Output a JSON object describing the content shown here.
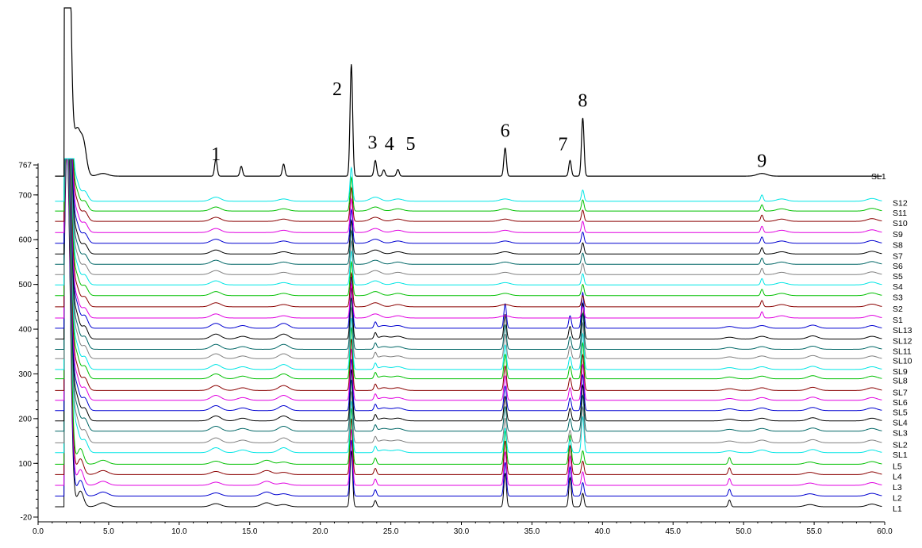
{
  "chart_data": {
    "type": "line",
    "title": "",
    "xlabel": "",
    "ylabel": "",
    "xlim": [
      0,
      60
    ],
    "ylim": [
      -20,
      767
    ],
    "x_ticks": [
      {
        "value": 0,
        "label": "0.0"
      },
      {
        "value": 5,
        "label": "5.0"
      },
      {
        "value": 10,
        "label": "10.0"
      },
      {
        "value": 15,
        "label": "15.0"
      },
      {
        "value": 20,
        "label": "20.0"
      },
      {
        "value": 25,
        "label": "25.0"
      },
      {
        "value": 30,
        "label": "30.0"
      },
      {
        "value": 35,
        "label": "35.0"
      },
      {
        "value": 40,
        "label": "40.0"
      },
      {
        "value": 45,
        "label": "45.0"
      },
      {
        "value": 50,
        "label": "50.0"
      },
      {
        "value": 55,
        "label": "55.0"
      },
      {
        "value": 60,
        "label": "60.0"
      }
    ],
    "y_ticks": [
      {
        "value": -20,
        "label": "-20"
      },
      {
        "value": 100,
        "label": "100"
      },
      {
        "value": 200,
        "label": "200"
      },
      {
        "value": 300,
        "label": "300"
      },
      {
        "value": 400,
        "label": "400"
      },
      {
        "value": 500,
        "label": "500"
      },
      {
        "value": 600,
        "label": "600"
      },
      {
        "value": 700,
        "label": "700"
      },
      {
        "value": 767,
        "label": "767"
      }
    ],
    "reference": {
      "name": "SL1",
      "color": "#000000",
      "baseline": 742,
      "peaks": [
        {
          "x": 1.95,
          "h": 620
        },
        {
          "x": 2.05,
          "h": 560
        },
        {
          "x": 2.75,
          "h": 95
        },
        {
          "x": 3.2,
          "h": 75
        },
        {
          "x": 4.6,
          "h": 6
        },
        {
          "x": 12.6,
          "h": 38
        },
        {
          "x": 14.4,
          "h": 22
        },
        {
          "x": 17.4,
          "h": 27
        },
        {
          "x": 22.2,
          "h": 250
        },
        {
          "x": 23.9,
          "h": 35
        },
        {
          "x": 24.5,
          "h": 14
        },
        {
          "x": 25.5,
          "h": 15
        },
        {
          "x": 33.1,
          "h": 63
        },
        {
          "x": 37.7,
          "h": 35
        },
        {
          "x": 38.6,
          "h": 130
        },
        {
          "x": 51.3,
          "h": 6
        }
      ]
    },
    "peak_labels": [
      {
        "label": "1",
        "x": 12.6,
        "y": 778
      },
      {
        "label": "2",
        "x": 21.2,
        "y": 923
      },
      {
        "label": "3",
        "x": 23.7,
        "y": 803
      },
      {
        "label": "4",
        "x": 24.9,
        "y": 801
      },
      {
        "label": "5",
        "x": 26.4,
        "y": 801
      },
      {
        "label": "6",
        "x": 33.1,
        "y": 830
      },
      {
        "label": "7",
        "x": 37.2,
        "y": 800
      },
      {
        "label": "8",
        "x": 38.6,
        "y": 897
      },
      {
        "label": "9",
        "x": 51.3,
        "y": 763
      }
    ],
    "series": [
      {
        "name": "S12",
        "color": "#00e5e5",
        "baseline": 686,
        "group": "S"
      },
      {
        "name": "S11",
        "color": "#00c000",
        "baseline": 664,
        "group": "S"
      },
      {
        "name": "S10",
        "color": "#8b0000",
        "baseline": 641,
        "group": "S"
      },
      {
        "name": "S9",
        "color": "#e000e0",
        "baseline": 616,
        "group": "S"
      },
      {
        "name": "S8",
        "color": "#0000d0",
        "baseline": 592,
        "group": "S"
      },
      {
        "name": "S7",
        "color": "#000000",
        "baseline": 568,
        "group": "S"
      },
      {
        "name": "S6",
        "color": "#006666",
        "baseline": 545,
        "group": "S"
      },
      {
        "name": "S5",
        "color": "#808080",
        "baseline": 522,
        "group": "S"
      },
      {
        "name": "S4",
        "color": "#00e5e5",
        "baseline": 499,
        "group": "S"
      },
      {
        "name": "S3",
        "color": "#00c000",
        "baseline": 475,
        "group": "S"
      },
      {
        "name": "S2",
        "color": "#8b0000",
        "baseline": 450,
        "group": "S"
      },
      {
        "name": "S1",
        "color": "#e000e0",
        "baseline": 425,
        "group": "S"
      },
      {
        "name": "SL13",
        "color": "#0000d0",
        "baseline": 402,
        "group": "SL"
      },
      {
        "name": "SL12",
        "color": "#000000",
        "baseline": 378,
        "group": "SL"
      },
      {
        "name": "SL11",
        "color": "#006666",
        "baseline": 355,
        "group": "SL"
      },
      {
        "name": "SL10",
        "color": "#808080",
        "baseline": 334,
        "group": "SL"
      },
      {
        "name": "SL9",
        "color": "#00e5e5",
        "baseline": 310,
        "group": "SL"
      },
      {
        "name": "SL8",
        "color": "#00c000",
        "baseline": 289,
        "group": "SL"
      },
      {
        "name": "SL7",
        "color": "#8b0000",
        "baseline": 263,
        "group": "SL"
      },
      {
        "name": "SL6",
        "color": "#e000e0",
        "baseline": 241,
        "group": "SL"
      },
      {
        "name": "SL5",
        "color": "#0000d0",
        "baseline": 218,
        "group": "SL"
      },
      {
        "name": "SL4",
        "color": "#000000",
        "baseline": 195,
        "group": "SL"
      },
      {
        "name": "SL3",
        "color": "#006666",
        "baseline": 172,
        "group": "SL"
      },
      {
        "name": "SL2",
        "color": "#808080",
        "baseline": 146,
        "group": "SL"
      },
      {
        "name": "SL1",
        "color": "#00e5e5",
        "baseline": 124,
        "group": "SL"
      },
      {
        "name": "L5",
        "color": "#00c000",
        "baseline": 98,
        "group": "L"
      },
      {
        "name": "L4",
        "color": "#8b0000",
        "baseline": 75,
        "group": "L"
      },
      {
        "name": "L3",
        "color": "#e000e0",
        "baseline": 51,
        "group": "L"
      },
      {
        "name": "L2",
        "color": "#0000d0",
        "baseline": 27,
        "group": "L"
      },
      {
        "name": "L1",
        "color": "#000000",
        "baseline": 3,
        "group": "L"
      }
    ],
    "profiles": {
      "S": [
        {
          "x": 2.7,
          "h": 45
        },
        {
          "x": 3.3,
          "h": 22
        },
        {
          "x": 12.6,
          "h": 9
        },
        {
          "x": 17.4,
          "h": 5
        },
        {
          "x": 22.2,
          "h": 75
        },
        {
          "x": 23.9,
          "h": 9
        },
        {
          "x": 25.5,
          "h": 5
        },
        {
          "x": 33.1,
          "h": 5
        },
        {
          "x": 38.6,
          "h": 25
        },
        {
          "x": 51.3,
          "h": 14
        },
        {
          "x": 52.7,
          "h": 5
        },
        {
          "x": 59.1,
          "h": 6
        }
      ],
      "SL": [
        {
          "x": 2.7,
          "h": 55
        },
        {
          "x": 3.3,
          "h": 28
        },
        {
          "x": 12.6,
          "h": 11
        },
        {
          "x": 14.5,
          "h": 6
        },
        {
          "x": 17.4,
          "h": 11
        },
        {
          "x": 22.2,
          "h": 115
        },
        {
          "x": 23.9,
          "h": 13
        },
        {
          "x": 24.5,
          "h": 6
        },
        {
          "x": 25.5,
          "h": 6
        },
        {
          "x": 33.1,
          "h": 55
        },
        {
          "x": 37.7,
          "h": 28
        },
        {
          "x": 38.6,
          "h": 80
        },
        {
          "x": 49.0,
          "h": 4
        },
        {
          "x": 51.3,
          "h": 6
        },
        {
          "x": 54.9,
          "h": 7
        },
        {
          "x": 59.1,
          "h": 6
        }
      ],
      "L": [
        {
          "x": 3.0,
          "h": 35
        },
        {
          "x": 4.6,
          "h": 9
        },
        {
          "x": 12.6,
          "h": 7
        },
        {
          "x": 16.2,
          "h": 9
        },
        {
          "x": 17.4,
          "h": 5
        },
        {
          "x": 22.2,
          "h": 125
        },
        {
          "x": 23.9,
          "h": 14
        },
        {
          "x": 33.1,
          "h": 75
        },
        {
          "x": 37.7,
          "h": 65
        },
        {
          "x": 38.6,
          "h": 30
        },
        {
          "x": 49.0,
          "h": 15
        },
        {
          "x": 54.7,
          "h": 5
        },
        {
          "x": 59.1,
          "h": 6
        }
      ]
    },
    "grid": false,
    "legend": "right, labels beside each trace"
  }
}
